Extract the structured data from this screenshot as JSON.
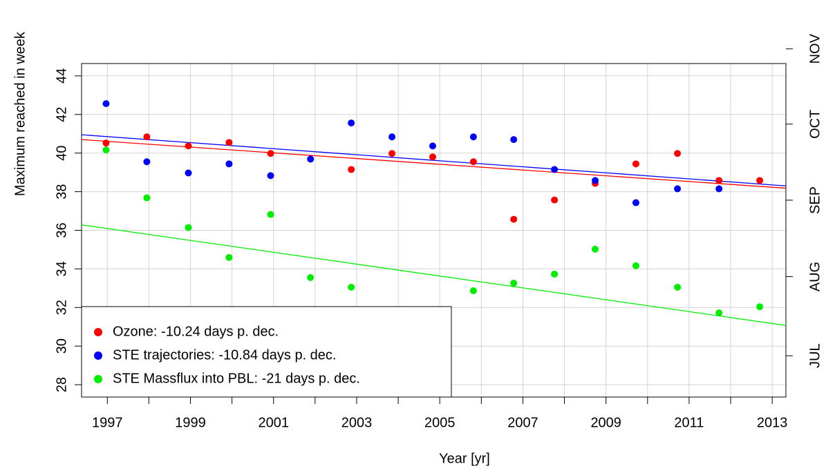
{
  "chart_data": {
    "type": "scatter",
    "x_label": "Year [yr]",
    "y_label": "Maximum reached in week",
    "xlim": [
      1996.38,
      2013.33
    ],
    "ylim": [
      27.36,
      44.64
    ],
    "xticks": [
      1997,
      1999,
      2001,
      2003,
      2005,
      2007,
      2009,
      2011,
      2013
    ],
    "xminorticks": [
      1998,
      2000,
      2002,
      2004,
      2006,
      2008,
      2010,
      2012
    ],
    "yticks": [
      28,
      30,
      32,
      34,
      36,
      38,
      40,
      42,
      44
    ],
    "y2lim": [
      27.36,
      44.64
    ],
    "y2ticks": [
      {
        "value": 29.5,
        "label": "JUL"
      },
      {
        "value": 33.6,
        "label": "AUG"
      },
      {
        "value": 37.56,
        "label": "SEP"
      },
      {
        "value": 41.5,
        "label": "OCT"
      },
      {
        "value": 45.4,
        "label": "NOV"
      }
    ],
    "grid": true,
    "legend": "bottom-left",
    "x": [
      1996.97,
      1997.95,
      1998.95,
      1999.93,
      2000.93,
      2001.89,
      2002.87,
      2003.85,
      2004.83,
      2005.81,
      2006.78,
      2007.76,
      2008.74,
      2009.72,
      2010.72,
      2011.72,
      2012.7
    ],
    "series": [
      {
        "name": "Ozone: -10.24 days p. dec.",
        "color": "#ff0000",
        "values": [
          40.52,
          40.84,
          40.37,
          40.55,
          39.98,
          39.69,
          39.15,
          39.98,
          39.8,
          39.55,
          36.57,
          37.57,
          38.43,
          39.44,
          39.98,
          38.58,
          38.58
        ],
        "trend": {
          "x": [
            1996.38,
            2013.33
          ],
          "y": [
            40.7,
            38.18
          ]
        }
      },
      {
        "name": "STE trajectories: -10.84 days p. dec.",
        "color": "#0000ff",
        "values": [
          42.56,
          39.55,
          38.97,
          39.44,
          38.83,
          39.69,
          41.56,
          40.84,
          40.37,
          40.84,
          40.7,
          39.15,
          38.58,
          37.43,
          38.15,
          38.15,
          null
        ],
        "trend": {
          "x": [
            1996.38,
            2013.33
          ],
          "y": [
            40.95,
            38.3
          ]
        }
      },
      {
        "name": "STE Massflux into PBL: -21 days p. dec.",
        "color": "#00ee00",
        "values": [
          40.16,
          37.68,
          36.14,
          34.59,
          36.82,
          33.55,
          33.05,
          null,
          null,
          32.87,
          33.26,
          33.73,
          35.02,
          34.16,
          33.05,
          31.72,
          32.04
        ],
        "trend": {
          "x": [
            1996.38,
            2013.33
          ],
          "y": [
            36.28,
            31.07
          ]
        }
      }
    ]
  }
}
